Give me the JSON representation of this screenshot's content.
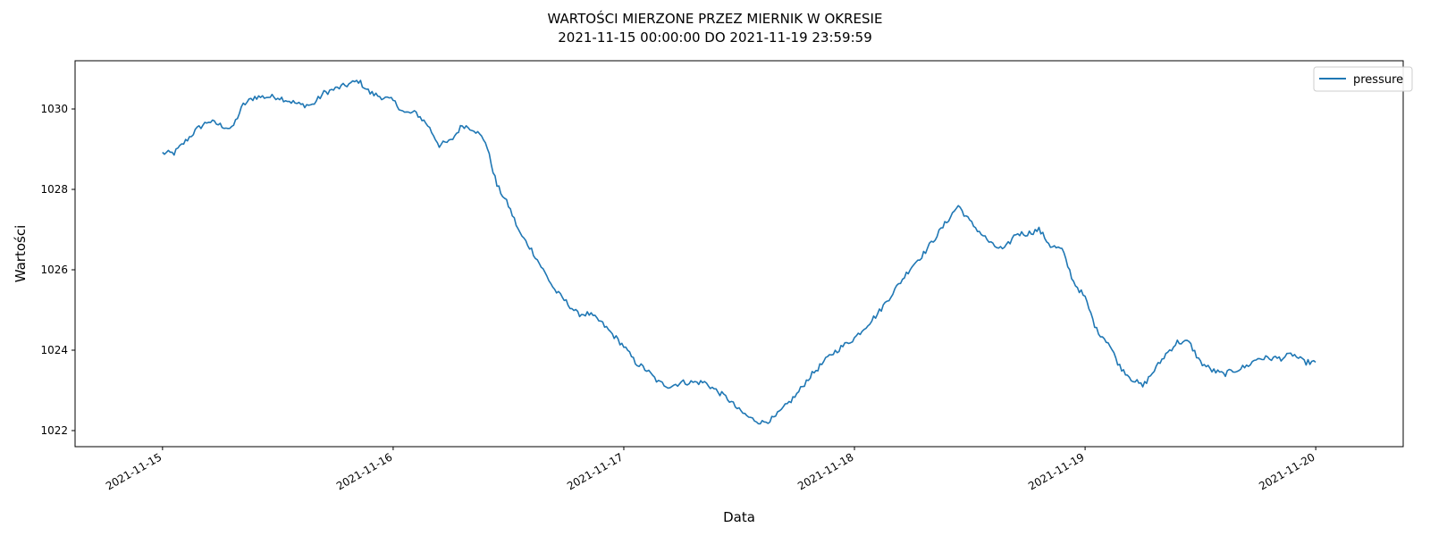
{
  "chart_data": {
    "type": "line",
    "title": "WARTOŚCI MIERZONE PRZEZ MIERNIK W OKRESIE",
    "subtitle": "2021-11-15 00:00:00 DO 2021-11-19 23:59:59",
    "xlabel": "Data",
    "ylabel": "Wartości",
    "x_ticks": [
      "2021-11-15",
      "2021-11-16",
      "2021-11-17",
      "2021-11-18",
      "2021-11-19",
      "2021-11-20"
    ],
    "y_ticks": [
      1022,
      1024,
      1026,
      1028,
      1030
    ],
    "xlim": [
      "2021-11-14 14:54",
      "2021-11-20 09:06"
    ],
    "ylim": [
      1021.6,
      1031.2
    ],
    "grid": false,
    "legend_position": "top-right",
    "series": [
      {
        "name": "pressure",
        "color": "#1f77b4",
        "x": [
          "2021-11-15 00:00",
          "2021-11-15 01:12",
          "2021-11-15 02:24",
          "2021-11-15 03:36",
          "2021-11-15 04:48",
          "2021-11-15 06:00",
          "2021-11-15 07:12",
          "2021-11-15 08:24",
          "2021-11-15 09:36",
          "2021-11-15 10:48",
          "2021-11-15 12:00",
          "2021-11-15 13:12",
          "2021-11-15 14:24",
          "2021-11-15 15:36",
          "2021-11-15 16:48",
          "2021-11-15 18:00",
          "2021-11-15 19:12",
          "2021-11-15 20:24",
          "2021-11-15 21:36",
          "2021-11-15 22:48",
          "2021-11-16 00:00",
          "2021-11-16 01:12",
          "2021-11-16 02:24",
          "2021-11-16 03:36",
          "2021-11-16 04:48",
          "2021-11-16 06:00",
          "2021-11-16 07:12",
          "2021-11-16 08:24",
          "2021-11-16 09:36",
          "2021-11-16 10:48",
          "2021-11-16 12:00",
          "2021-11-16 13:12",
          "2021-11-16 14:24",
          "2021-11-16 15:36",
          "2021-11-16 16:48",
          "2021-11-16 18:00",
          "2021-11-16 19:12",
          "2021-11-16 20:24",
          "2021-11-16 21:36",
          "2021-11-16 22:48",
          "2021-11-17 00:00",
          "2021-11-17 01:12",
          "2021-11-17 02:24",
          "2021-11-17 03:36",
          "2021-11-17 04:48",
          "2021-11-17 06:00",
          "2021-11-17 07:12",
          "2021-11-17 08:24",
          "2021-11-17 09:36",
          "2021-11-17 10:48",
          "2021-11-17 12:00",
          "2021-11-17 13:12",
          "2021-11-17 14:24",
          "2021-11-17 15:36",
          "2021-11-17 16:48",
          "2021-11-17 18:00",
          "2021-11-17 19:12",
          "2021-11-17 20:24",
          "2021-11-17 21:36",
          "2021-11-17 22:48",
          "2021-11-18 00:00",
          "2021-11-18 01:12",
          "2021-11-18 02:24",
          "2021-11-18 03:36",
          "2021-11-18 04:48",
          "2021-11-18 06:00",
          "2021-11-18 07:12",
          "2021-11-18 08:24",
          "2021-11-18 09:36",
          "2021-11-18 10:48",
          "2021-11-18 12:00",
          "2021-11-18 13:12",
          "2021-11-18 14:24",
          "2021-11-18 15:36",
          "2021-11-18 16:48",
          "2021-11-18 18:00",
          "2021-11-18 19:12",
          "2021-11-18 20:24",
          "2021-11-18 21:36",
          "2021-11-18 22:48",
          "2021-11-19 00:00",
          "2021-11-19 01:12",
          "2021-11-19 02:24",
          "2021-11-19 03:36",
          "2021-11-19 04:48",
          "2021-11-19 06:00",
          "2021-11-19 07:12",
          "2021-11-19 08:24",
          "2021-11-19 09:36",
          "2021-11-19 10:48",
          "2021-11-19 12:00",
          "2021-11-19 13:12",
          "2021-11-19 14:24",
          "2021-11-19 15:36",
          "2021-11-19 16:48",
          "2021-11-19 18:00",
          "2021-11-19 19:12",
          "2021-11-19 20:24",
          "2021-11-19 21:36",
          "2021-11-19 22:48",
          "2021-11-19 23:59"
        ],
        "values": [
          1028.9,
          1028.9,
          1029.2,
          1029.5,
          1029.7,
          1029.6,
          1029.5,
          1030.1,
          1030.3,
          1030.3,
          1030.3,
          1030.2,
          1030.1,
          1030.1,
          1030.4,
          1030.5,
          1030.6,
          1030.7,
          1030.4,
          1030.3,
          1030.2,
          1029.9,
          1029.9,
          1029.6,
          1029.1,
          1029.2,
          1029.6,
          1029.5,
          1029.2,
          1028.1,
          1027.6,
          1026.9,
          1026.5,
          1026.0,
          1025.5,
          1025.2,
          1024.9,
          1024.9,
          1024.7,
          1024.4,
          1024.1,
          1023.7,
          1023.5,
          1023.2,
          1023.1,
          1023.2,
          1023.2,
          1023.2,
          1023.0,
          1022.8,
          1022.5,
          1022.3,
          1022.2,
          1022.3,
          1022.6,
          1022.9,
          1023.3,
          1023.6,
          1023.9,
          1024.1,
          1024.3,
          1024.6,
          1024.9,
          1025.3,
          1025.7,
          1026.1,
          1026.4,
          1026.8,
          1027.2,
          1027.6,
          1027.2,
          1026.9,
          1026.6,
          1026.5,
          1026.9,
          1026.9,
          1027.0,
          1026.6,
          1026.5,
          1025.7,
          1025.3,
          1024.5,
          1024.2,
          1023.6,
          1023.3,
          1023.1,
          1023.5,
          1023.9,
          1024.2,
          1024.2,
          1023.7,
          1023.5,
          1023.4,
          1023.5,
          1023.6,
          1023.8,
          1023.8,
          1023.8,
          1023.9,
          1023.7,
          1023.7
        ]
      }
    ]
  }
}
